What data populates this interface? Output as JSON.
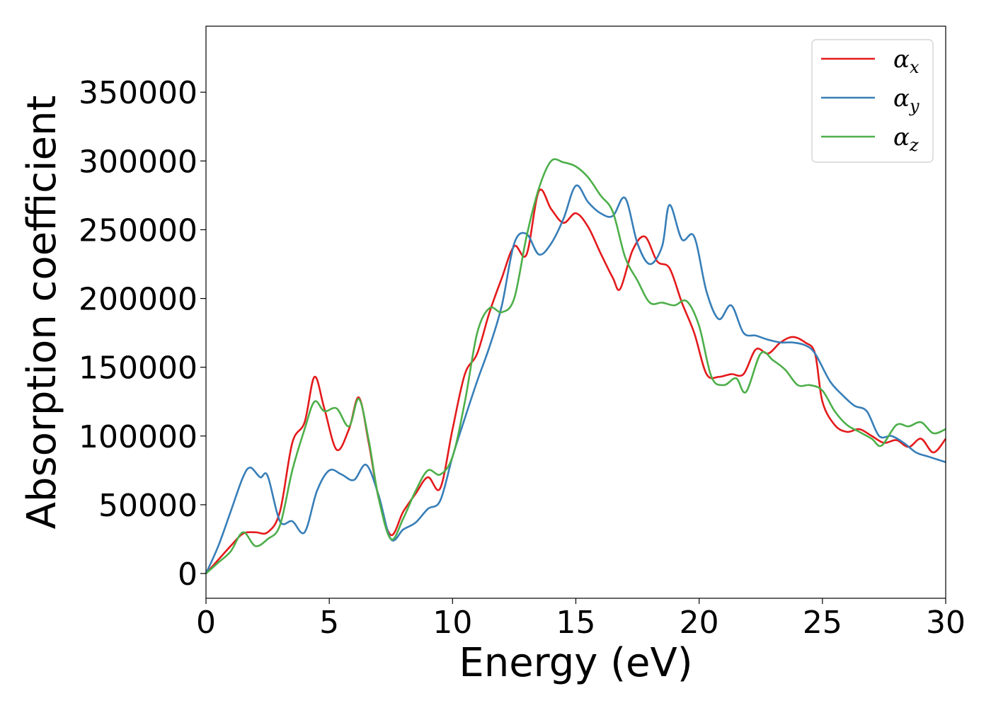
{
  "chart_data": {
    "type": "line",
    "title": "",
    "xlabel": "Energy (eV)",
    "ylabel": "Absorption coefficient",
    "xlim": [
      0,
      30
    ],
    "ylim": [
      -18000,
      398000
    ],
    "xticks": [
      0,
      5,
      10,
      15,
      20,
      25,
      30
    ],
    "xtick_labels": [
      "0",
      "5",
      "10",
      "15",
      "20",
      "25",
      "30"
    ],
    "yticks": [
      0,
      50000,
      100000,
      150000,
      200000,
      250000,
      300000,
      350000
    ],
    "ytick_labels": [
      "0",
      "50000",
      "100000",
      "150000",
      "200000",
      "250000",
      "300000",
      "350000"
    ],
    "grid": false,
    "legend_position": "top-right",
    "series": [
      {
        "name": "α_x",
        "symbol": "α",
        "subscript": "x",
        "color": "#e41a1c",
        "points": [
          [
            0,
            0
          ],
          [
            0.5,
            10000
          ],
          [
            1,
            20000
          ],
          [
            1.5,
            29000
          ],
          [
            2,
            30000
          ],
          [
            2.5,
            30000
          ],
          [
            3,
            45000
          ],
          [
            3.5,
            95000
          ],
          [
            4,
            110000
          ],
          [
            4.4,
            143000
          ],
          [
            4.8,
            120000
          ],
          [
            5.3,
            90000
          ],
          [
            5.8,
            105000
          ],
          [
            6.2,
            128000
          ],
          [
            6.6,
            95000
          ],
          [
            7,
            55000
          ],
          [
            7.5,
            28000
          ],
          [
            8,
            45000
          ],
          [
            8.5,
            58000
          ],
          [
            9,
            70000
          ],
          [
            9.5,
            62000
          ],
          [
            10,
            105000
          ],
          [
            10.5,
            145000
          ],
          [
            11,
            160000
          ],
          [
            11.5,
            190000
          ],
          [
            12,
            215000
          ],
          [
            12.5,
            238000
          ],
          [
            13,
            232000
          ],
          [
            13.5,
            278000
          ],
          [
            14,
            265000
          ],
          [
            14.5,
            255000
          ],
          [
            15,
            262000
          ],
          [
            15.5,
            252000
          ],
          [
            16,
            233000
          ],
          [
            16.5,
            215000
          ],
          [
            16.8,
            207000
          ],
          [
            17.3,
            235000
          ],
          [
            17.8,
            245000
          ],
          [
            18.3,
            227000
          ],
          [
            18.8,
            222000
          ],
          [
            19.3,
            197000
          ],
          [
            19.8,
            175000
          ],
          [
            20.3,
            145000
          ],
          [
            20.8,
            143000
          ],
          [
            21.3,
            145000
          ],
          [
            21.8,
            145000
          ],
          [
            22.3,
            163000
          ],
          [
            22.8,
            160000
          ],
          [
            23.3,
            168000
          ],
          [
            23.8,
            172000
          ],
          [
            24.3,
            168000
          ],
          [
            24.7,
            160000
          ],
          [
            25,
            125000
          ],
          [
            25.5,
            108000
          ],
          [
            26,
            103000
          ],
          [
            26.5,
            105000
          ],
          [
            27,
            100000
          ],
          [
            27.5,
            95000
          ],
          [
            28,
            97000
          ],
          [
            28.5,
            92000
          ],
          [
            29,
            98000
          ],
          [
            29.5,
            88000
          ],
          [
            30,
            98000
          ]
        ]
      },
      {
        "name": "α_y",
        "symbol": "α",
        "subscript": "y",
        "color": "#377eb8",
        "points": [
          [
            0,
            0
          ],
          [
            0.5,
            20000
          ],
          [
            1,
            45000
          ],
          [
            1.5,
            70000
          ],
          [
            1.8,
            77000
          ],
          [
            2.2,
            70000
          ],
          [
            2.5,
            71000
          ],
          [
            3,
            38000
          ],
          [
            3.5,
            38000
          ],
          [
            4,
            30000
          ],
          [
            4.5,
            60000
          ],
          [
            5,
            75000
          ],
          [
            5.5,
            72000
          ],
          [
            6,
            68000
          ],
          [
            6.5,
            79000
          ],
          [
            7,
            57000
          ],
          [
            7.5,
            25000
          ],
          [
            8,
            32000
          ],
          [
            8.5,
            37000
          ],
          [
            9,
            47000
          ],
          [
            9.5,
            53000
          ],
          [
            10,
            85000
          ],
          [
            10.5,
            113000
          ],
          [
            11,
            140000
          ],
          [
            11.5,
            165000
          ],
          [
            12,
            195000
          ],
          [
            12.5,
            240000
          ],
          [
            13,
            247000
          ],
          [
            13.5,
            232000
          ],
          [
            14,
            240000
          ],
          [
            14.5,
            258000
          ],
          [
            15,
            282000
          ],
          [
            15.5,
            270000
          ],
          [
            16,
            262000
          ],
          [
            16.5,
            260000
          ],
          [
            17,
            273000
          ],
          [
            17.5,
            240000
          ],
          [
            18,
            225000
          ],
          [
            18.5,
            238000
          ],
          [
            18.8,
            268000
          ],
          [
            19.3,
            243000
          ],
          [
            19.8,
            245000
          ],
          [
            20.3,
            205000
          ],
          [
            20.8,
            185000
          ],
          [
            21.3,
            195000
          ],
          [
            21.8,
            175000
          ],
          [
            22.3,
            173000
          ],
          [
            22.8,
            170000
          ],
          [
            23.3,
            168000
          ],
          [
            23.8,
            168000
          ],
          [
            24.3,
            166000
          ],
          [
            24.7,
            160000
          ],
          [
            25.3,
            140000
          ],
          [
            25.8,
            130000
          ],
          [
            26.3,
            122000
          ],
          [
            26.8,
            118000
          ],
          [
            27.3,
            100000
          ],
          [
            27.8,
            100000
          ],
          [
            28.3,
            95000
          ],
          [
            28.8,
            88000
          ],
          [
            29.3,
            85000
          ],
          [
            30,
            81000
          ]
        ]
      },
      {
        "name": "α_z",
        "symbol": "α",
        "subscript": "z",
        "color": "#4daf4a",
        "points": [
          [
            0,
            0
          ],
          [
            0.5,
            8000
          ],
          [
            1,
            16000
          ],
          [
            1.5,
            30000
          ],
          [
            2,
            20000
          ],
          [
            2.5,
            25000
          ],
          [
            3,
            35000
          ],
          [
            3.5,
            75000
          ],
          [
            4,
            105000
          ],
          [
            4.4,
            125000
          ],
          [
            4.8,
            118000
          ],
          [
            5.3,
            120000
          ],
          [
            5.8,
            107000
          ],
          [
            6.2,
            127000
          ],
          [
            6.6,
            97000
          ],
          [
            7,
            55000
          ],
          [
            7.5,
            25000
          ],
          [
            8,
            40000
          ],
          [
            8.5,
            60000
          ],
          [
            9,
            75000
          ],
          [
            9.5,
            72000
          ],
          [
            10,
            85000
          ],
          [
            10.5,
            125000
          ],
          [
            11,
            175000
          ],
          [
            11.5,
            193000
          ],
          [
            12,
            190000
          ],
          [
            12.5,
            200000
          ],
          [
            13,
            245000
          ],
          [
            13.5,
            280000
          ],
          [
            14,
            300000
          ],
          [
            14.5,
            299000
          ],
          [
            15,
            296000
          ],
          [
            15.5,
            288000
          ],
          [
            16,
            275000
          ],
          [
            16.5,
            263000
          ],
          [
            17,
            230000
          ],
          [
            17.5,
            213000
          ],
          [
            18,
            197000
          ],
          [
            18.5,
            197000
          ],
          [
            19,
            195000
          ],
          [
            19.5,
            198000
          ],
          [
            20,
            180000
          ],
          [
            20.5,
            143000
          ],
          [
            21,
            137000
          ],
          [
            21.5,
            142000
          ],
          [
            21.9,
            132000
          ],
          [
            22.5,
            160000
          ],
          [
            23,
            155000
          ],
          [
            23.5,
            148000
          ],
          [
            24,
            137000
          ],
          [
            24.5,
            137000
          ],
          [
            25,
            133000
          ],
          [
            25.5,
            118000
          ],
          [
            26,
            108000
          ],
          [
            26.5,
            103000
          ],
          [
            27,
            98000
          ],
          [
            27.4,
            93000
          ],
          [
            28,
            108000
          ],
          [
            28.5,
            107000
          ],
          [
            29,
            110000
          ],
          [
            29.5,
            102000
          ],
          [
            30,
            105000
          ]
        ]
      }
    ]
  }
}
